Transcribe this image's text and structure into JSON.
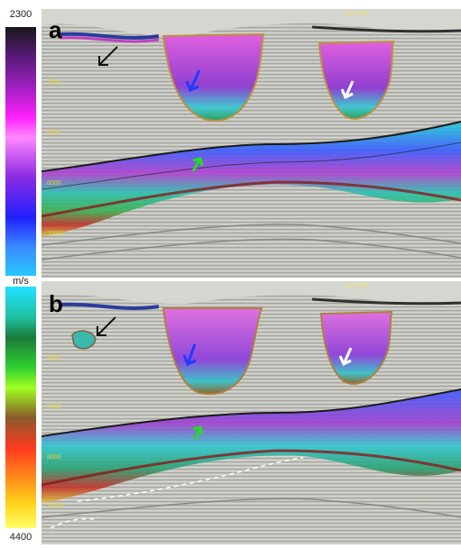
{
  "colorbar": {
    "top_value": "2300",
    "bottom_value": "4400",
    "unit": "m/s"
  },
  "panels": [
    {
      "letter": "a",
      "direction_label": "N <-> S",
      "depth_labels": [
        "3000",
        "5000",
        "6000",
        "10000"
      ],
      "arrows": [
        {
          "color": "#111111",
          "name": "black-arrow"
        },
        {
          "color": "#1e3cff",
          "name": "blue-arrow"
        },
        {
          "color": "#ffffff",
          "name": "white-arrow"
        },
        {
          "color": "#22dd22",
          "name": "green-arrow"
        }
      ]
    },
    {
      "letter": "b",
      "direction_label": "N <-> S",
      "depth_labels": [
        "4000",
        "6000",
        "8000",
        "10000"
      ],
      "arrows": [
        {
          "color": "#111111",
          "name": "black-arrow"
        },
        {
          "color": "#1e3cff",
          "name": "blue-arrow"
        },
        {
          "color": "#ffffff",
          "name": "white-arrow"
        },
        {
          "color": "#22dd22",
          "name": "green-arrow"
        }
      ]
    }
  ]
}
